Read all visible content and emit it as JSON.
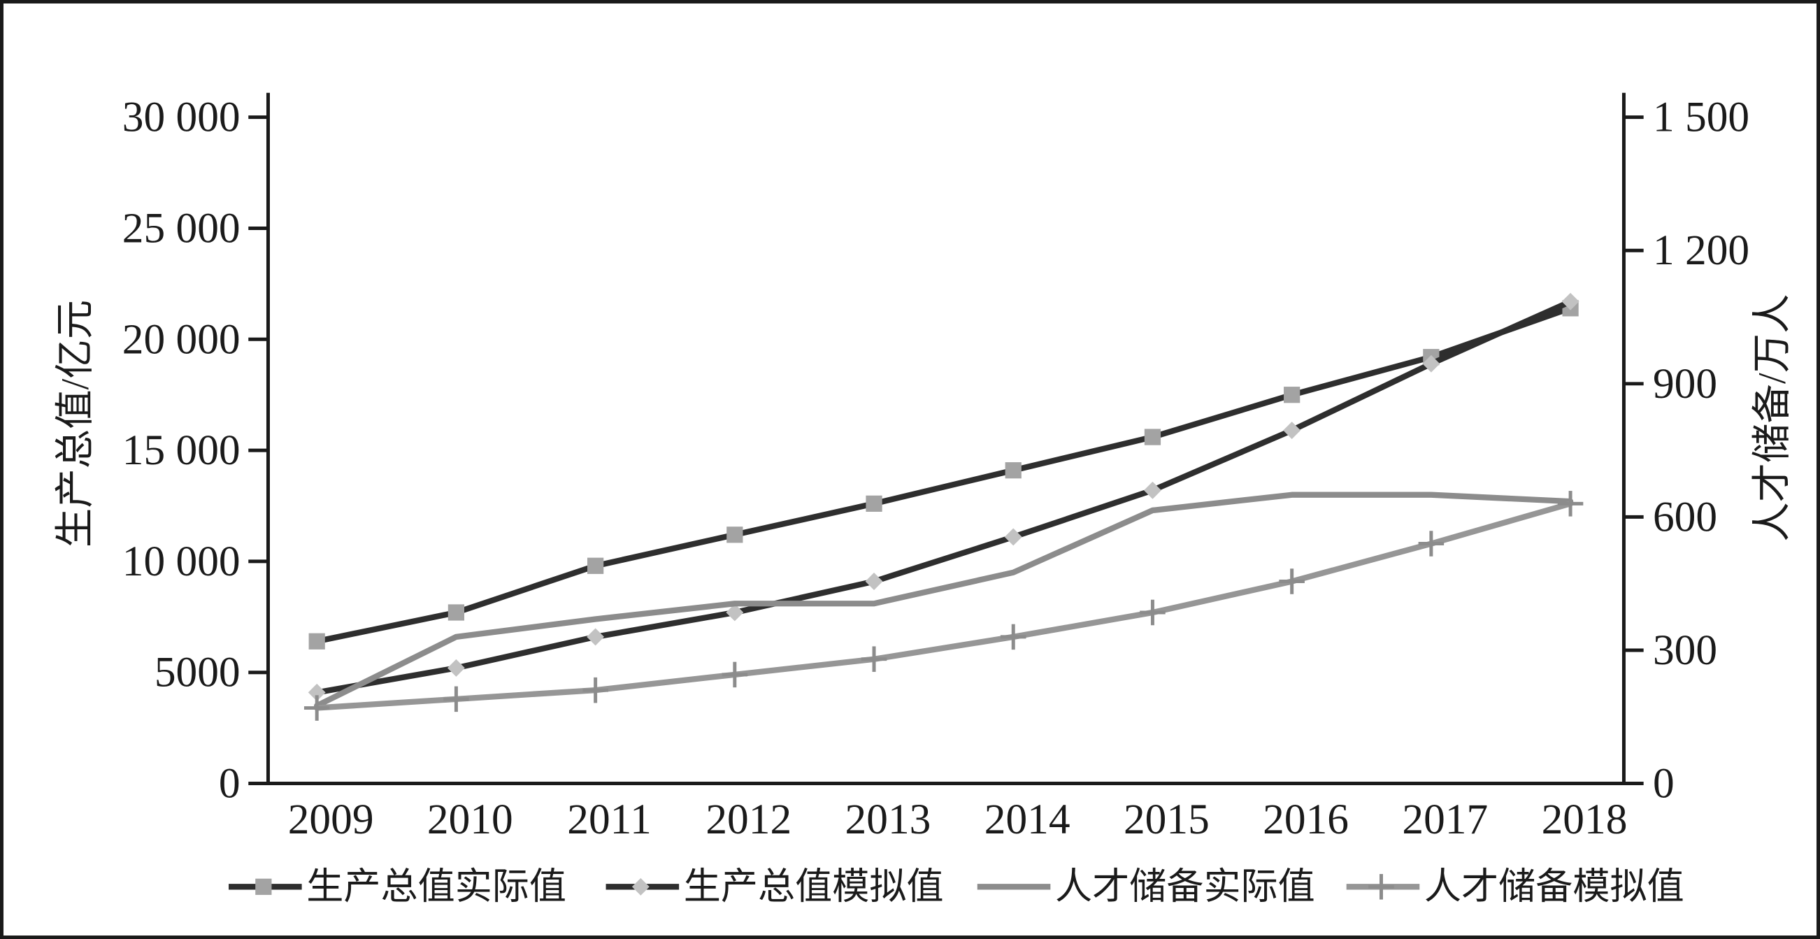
{
  "chart_data": {
    "type": "line",
    "categories": [
      "2009",
      "2010",
      "2011",
      "2012",
      "2013",
      "2014",
      "2015",
      "2016",
      "2017",
      "2018"
    ],
    "series": [
      {
        "name": "生产总值实际值",
        "y2": false,
        "color": "#2e2e2e",
        "marker": "square",
        "marker_color": "#a3a3a3",
        "values": [
          6400,
          7700,
          9800,
          11200,
          12600,
          14100,
          15600,
          17500,
          19200,
          21400
        ]
      },
      {
        "name": "生产总值模拟值",
        "y2": false,
        "color": "#2e2e2e",
        "marker": "diamond",
        "marker_color": "#c2c2c2",
        "values": [
          4100,
          5200,
          6600,
          7700,
          9100,
          11100,
          13200,
          15900,
          18900,
          21700
        ]
      },
      {
        "name": "人才储备实际值",
        "y2": true,
        "color": "#8c8c8c",
        "values": [
          175,
          330,
          370,
          405,
          405,
          475,
          615,
          650,
          650,
          635
        ]
      },
      {
        "name": "人才储备模拟值",
        "y2": true,
        "color": "#969696",
        "marker": "plus",
        "marker_color": "#8c8c8c",
        "values": [
          170,
          190,
          210,
          245,
          280,
          330,
          385,
          455,
          540,
          630
        ]
      }
    ],
    "ylabel": "生产总值/亿元",
    "ylim": [
      0,
      30000
    ],
    "yticks": [
      0,
      5000,
      10000,
      15000,
      20000,
      25000,
      30000
    ],
    "ytick_labels": [
      "0",
      "5000",
      "10 000",
      "15 000",
      "20 000",
      "25 000",
      "30 000"
    ],
    "y2label": "人才储备/万人",
    "y2lim": [
      0,
      1500
    ],
    "y2ticks": [
      0,
      300,
      600,
      900,
      1200,
      1500
    ],
    "y2tick_labels": [
      "0",
      "300",
      "600",
      "900",
      "1 200",
      "1 500"
    ],
    "grid": false,
    "legend": "bottom"
  }
}
